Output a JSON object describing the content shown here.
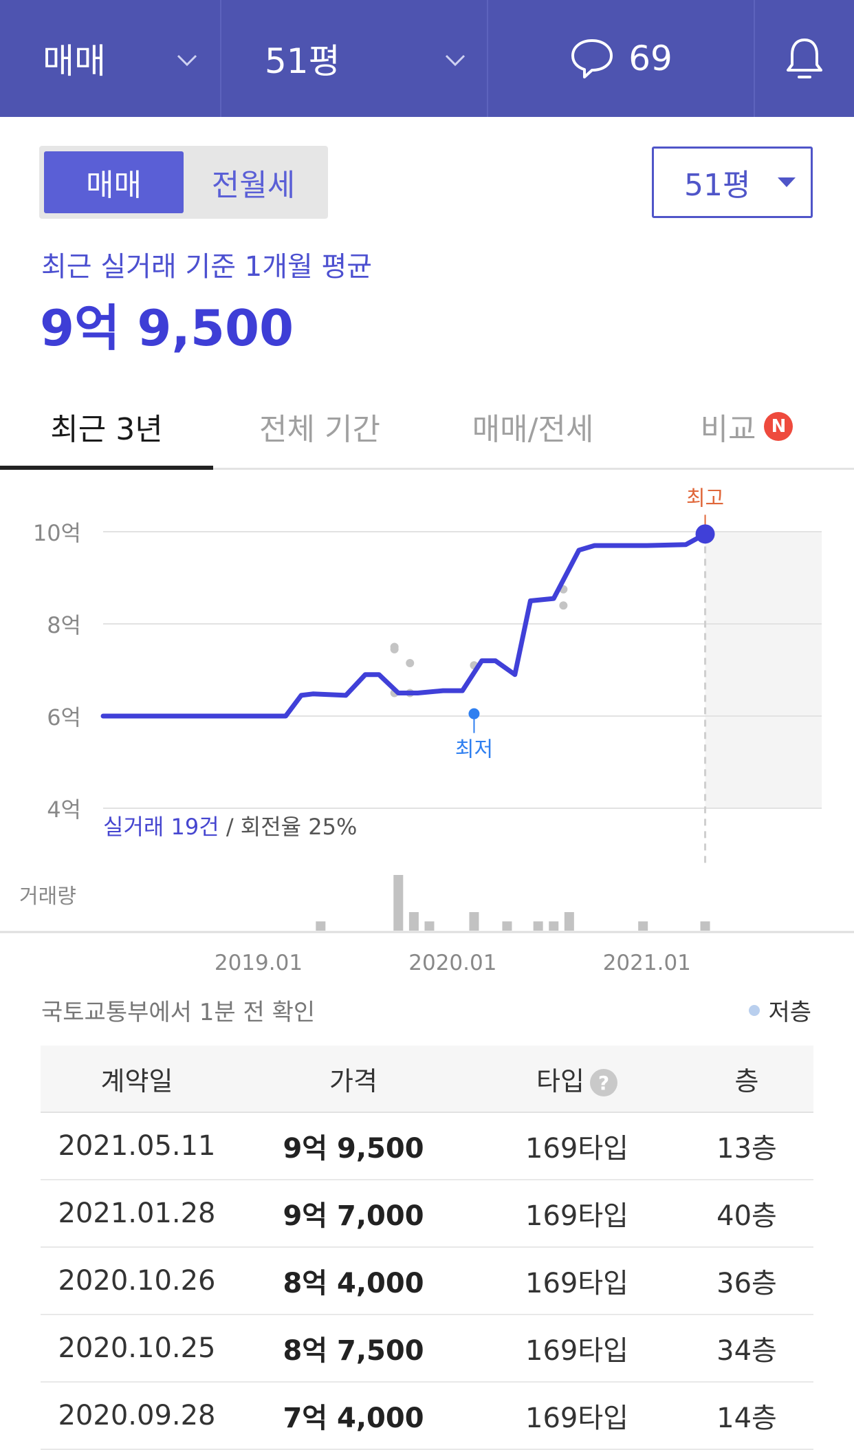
{
  "topbar": {
    "trade_type": "매매",
    "area": "51평",
    "comment_count": "69"
  },
  "segment": {
    "option1": "매매",
    "option2": "전월세"
  },
  "area_select": {
    "value": "51평"
  },
  "summary": {
    "caption": "최근 실거래 기준 1개월 평균",
    "price": "9억 9,500"
  },
  "tabs": [
    {
      "label": "최근 3년"
    },
    {
      "label": "전체 기간"
    },
    {
      "label": "매매/전세"
    },
    {
      "label": "비교",
      "badge": "N"
    }
  ],
  "chart_data": {
    "type": "line",
    "y_tick_labels": [
      "10억",
      "8억",
      "6억",
      "4억"
    ],
    "y_ticks": [
      10,
      8,
      6,
      4
    ],
    "x_tick_labels": [
      "2019.01",
      "2020.01",
      "2021.01"
    ],
    "x_ticks": [
      2019.0,
      2020.0,
      2021.0
    ],
    "xlim": [
      2018.2,
      2021.9
    ],
    "ylim": [
      4,
      10
    ],
    "series": [
      {
        "x": [
          2018.2,
          2019.14,
          2019.22,
          2019.28,
          2019.45,
          2019.55,
          2019.62,
          2019.72,
          2019.82,
          2019.95,
          2020.05,
          2020.15,
          2020.22,
          2020.32,
          2020.4,
          2020.52,
          2020.65,
          2020.73,
          2020.9,
          2021.0,
          2021.2,
          2021.3
        ],
        "y": [
          6.0,
          6.0,
          6.45,
          6.48,
          6.45,
          6.9,
          6.9,
          6.5,
          6.5,
          6.55,
          6.55,
          7.2,
          7.2,
          6.9,
          8.5,
          8.55,
          9.6,
          9.7,
          9.7,
          9.7,
          9.72,
          9.95
        ]
      }
    ],
    "scatter_points": [
      {
        "x": 2019.7,
        "y": 7.5
      },
      {
        "x": 2019.7,
        "y": 7.45
      },
      {
        "x": 2019.78,
        "y": 7.15
      },
      {
        "x": 2019.7,
        "y": 6.5
      },
      {
        "x": 2019.78,
        "y": 6.5
      },
      {
        "x": 2020.11,
        "y": 7.1
      },
      {
        "x": 2020.57,
        "y": 8.75
      },
      {
        "x": 2020.57,
        "y": 8.4
      }
    ],
    "high_marker": {
      "label": "최고",
      "x": 2021.3,
      "y": 9.95
    },
    "low_marker": {
      "label": "최저",
      "x": 2020.11,
      "y": 6.05
    },
    "stats": {
      "count_text": "실거래 19건",
      "rate_text": "회전율 25%"
    },
    "volume_label": "거래량",
    "volume_bars": [
      {
        "x": 2019.32,
        "v": 1
      },
      {
        "x": 2019.72,
        "v": 6
      },
      {
        "x": 2019.8,
        "v": 2
      },
      {
        "x": 2019.88,
        "v": 1
      },
      {
        "x": 2020.11,
        "v": 2
      },
      {
        "x": 2020.28,
        "v": 1
      },
      {
        "x": 2020.44,
        "v": 1
      },
      {
        "x": 2020.52,
        "v": 1
      },
      {
        "x": 2020.6,
        "v": 2
      },
      {
        "x": 2020.98,
        "v": 1
      },
      {
        "x": 2021.3,
        "v": 1
      }
    ],
    "colors": {
      "line": "#4040d8",
      "high": "#e0673a",
      "low": "#2f7ff0",
      "bar": "#c2c2c2"
    }
  },
  "source_note": "국토교통부에서 1분 전 확인",
  "legend_label": "저층",
  "table": {
    "headers": [
      "계약일",
      "가격",
      "타입",
      "층"
    ],
    "rows": [
      {
        "date": "2021.05.11",
        "price": "9억 9,500",
        "type": "169타입",
        "floor": "13층"
      },
      {
        "date": "2021.01.28",
        "price": "9억 7,000",
        "type": "169타입",
        "floor": "40층"
      },
      {
        "date": "2020.10.26",
        "price": "8억 4,000",
        "type": "169타입",
        "floor": "36층"
      },
      {
        "date": "2020.10.25",
        "price": "8억 7,500",
        "type": "169타입",
        "floor": "34층"
      },
      {
        "date": "2020.09.28",
        "price": "7억 4,000",
        "type": "169타입",
        "floor": "14층"
      }
    ]
  }
}
